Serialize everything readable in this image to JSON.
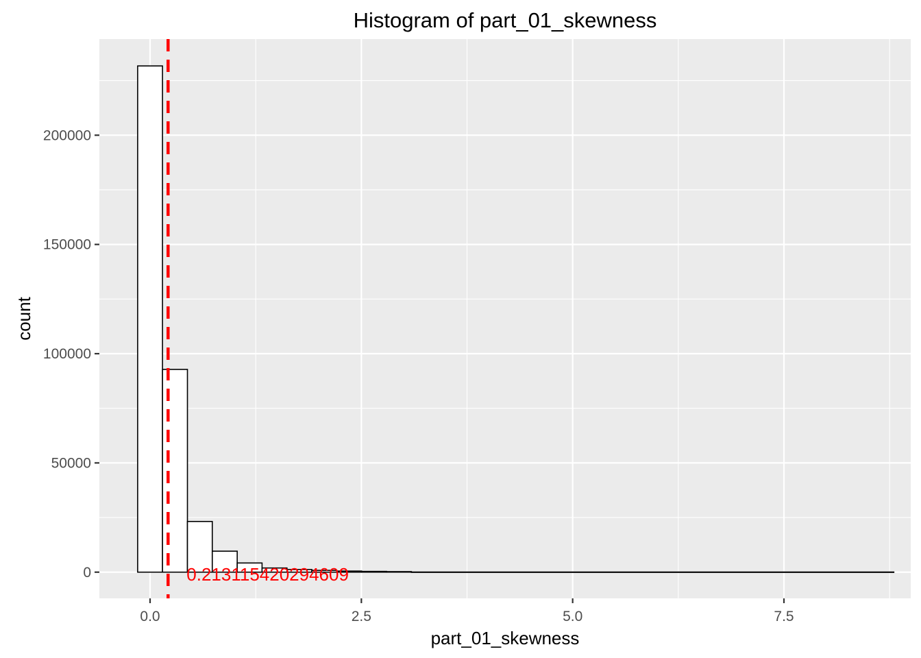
{
  "chart_data": {
    "type": "bar",
    "title": "Histogram of  part_01_skewness",
    "xlabel": "part_01_skewness",
    "ylabel": "count",
    "xlim": [
      -0.6,
      9.0
    ],
    "ylim": [
      -12000,
      244000
    ],
    "x_ticks": [
      0.0,
      2.5,
      5.0,
      7.5
    ],
    "x_tick_labels": [
      "0.0",
      "2.5",
      "5.0",
      "7.5"
    ],
    "y_ticks": [
      0,
      50000,
      100000,
      150000,
      200000
    ],
    "y_tick_labels": [
      "0",
      "50000",
      "100000",
      "150000",
      "200000"
    ],
    "bin_width": 0.2946,
    "bins": [
      {
        "x0": -0.147,
        "x1": 0.147,
        "count": 231700
      },
      {
        "x0": 0.147,
        "x1": 0.442,
        "count": 92800
      },
      {
        "x0": 0.442,
        "x1": 0.736,
        "count": 23200
      },
      {
        "x0": 0.736,
        "x1": 1.031,
        "count": 9600
      },
      {
        "x0": 1.031,
        "x1": 1.325,
        "count": 4200
      },
      {
        "x0": 1.325,
        "x1": 1.62,
        "count": 1900
      },
      {
        "x0": 1.62,
        "x1": 1.914,
        "count": 1200
      },
      {
        "x0": 1.914,
        "x1": 2.209,
        "count": 800
      },
      {
        "x0": 2.209,
        "x1": 2.503,
        "count": 500
      },
      {
        "x0": 2.503,
        "x1": 2.798,
        "count": 350
      },
      {
        "x0": 2.798,
        "x1": 3.092,
        "count": 250
      },
      {
        "x0": 3.092,
        "x1": 8.8,
        "count": 60
      }
    ],
    "reference_line": {
      "x": 0.213115420294609,
      "style": "dashed",
      "color": "#FF0000",
      "label": "0.213115420294609"
    },
    "colors": {
      "panel_background": "#EBEBEB",
      "grid": "#FFFFFF",
      "bar_fill": "#FFFFFF",
      "bar_outline": "#000000",
      "annotation": "#FF0000"
    },
    "grid": true,
    "legend": "none"
  }
}
